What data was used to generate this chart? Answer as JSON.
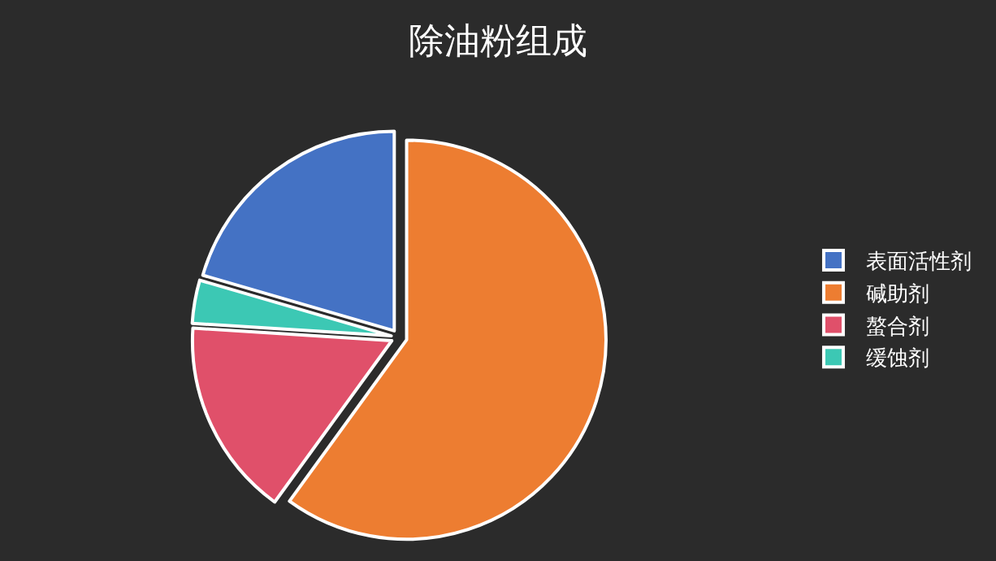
{
  "chart_data": {
    "type": "pie",
    "title": "除油粉组成",
    "categories": [
      "表面活性剂",
      "碱助剂",
      "螯合剂",
      "缓蚀剂"
    ],
    "values": [
      20.5,
      60,
      16,
      3.5
    ],
    "colors": [
      "#4472c4",
      "#ed7d31",
      "#e0506a",
      "#3cc8b4"
    ],
    "legend": "right"
  }
}
